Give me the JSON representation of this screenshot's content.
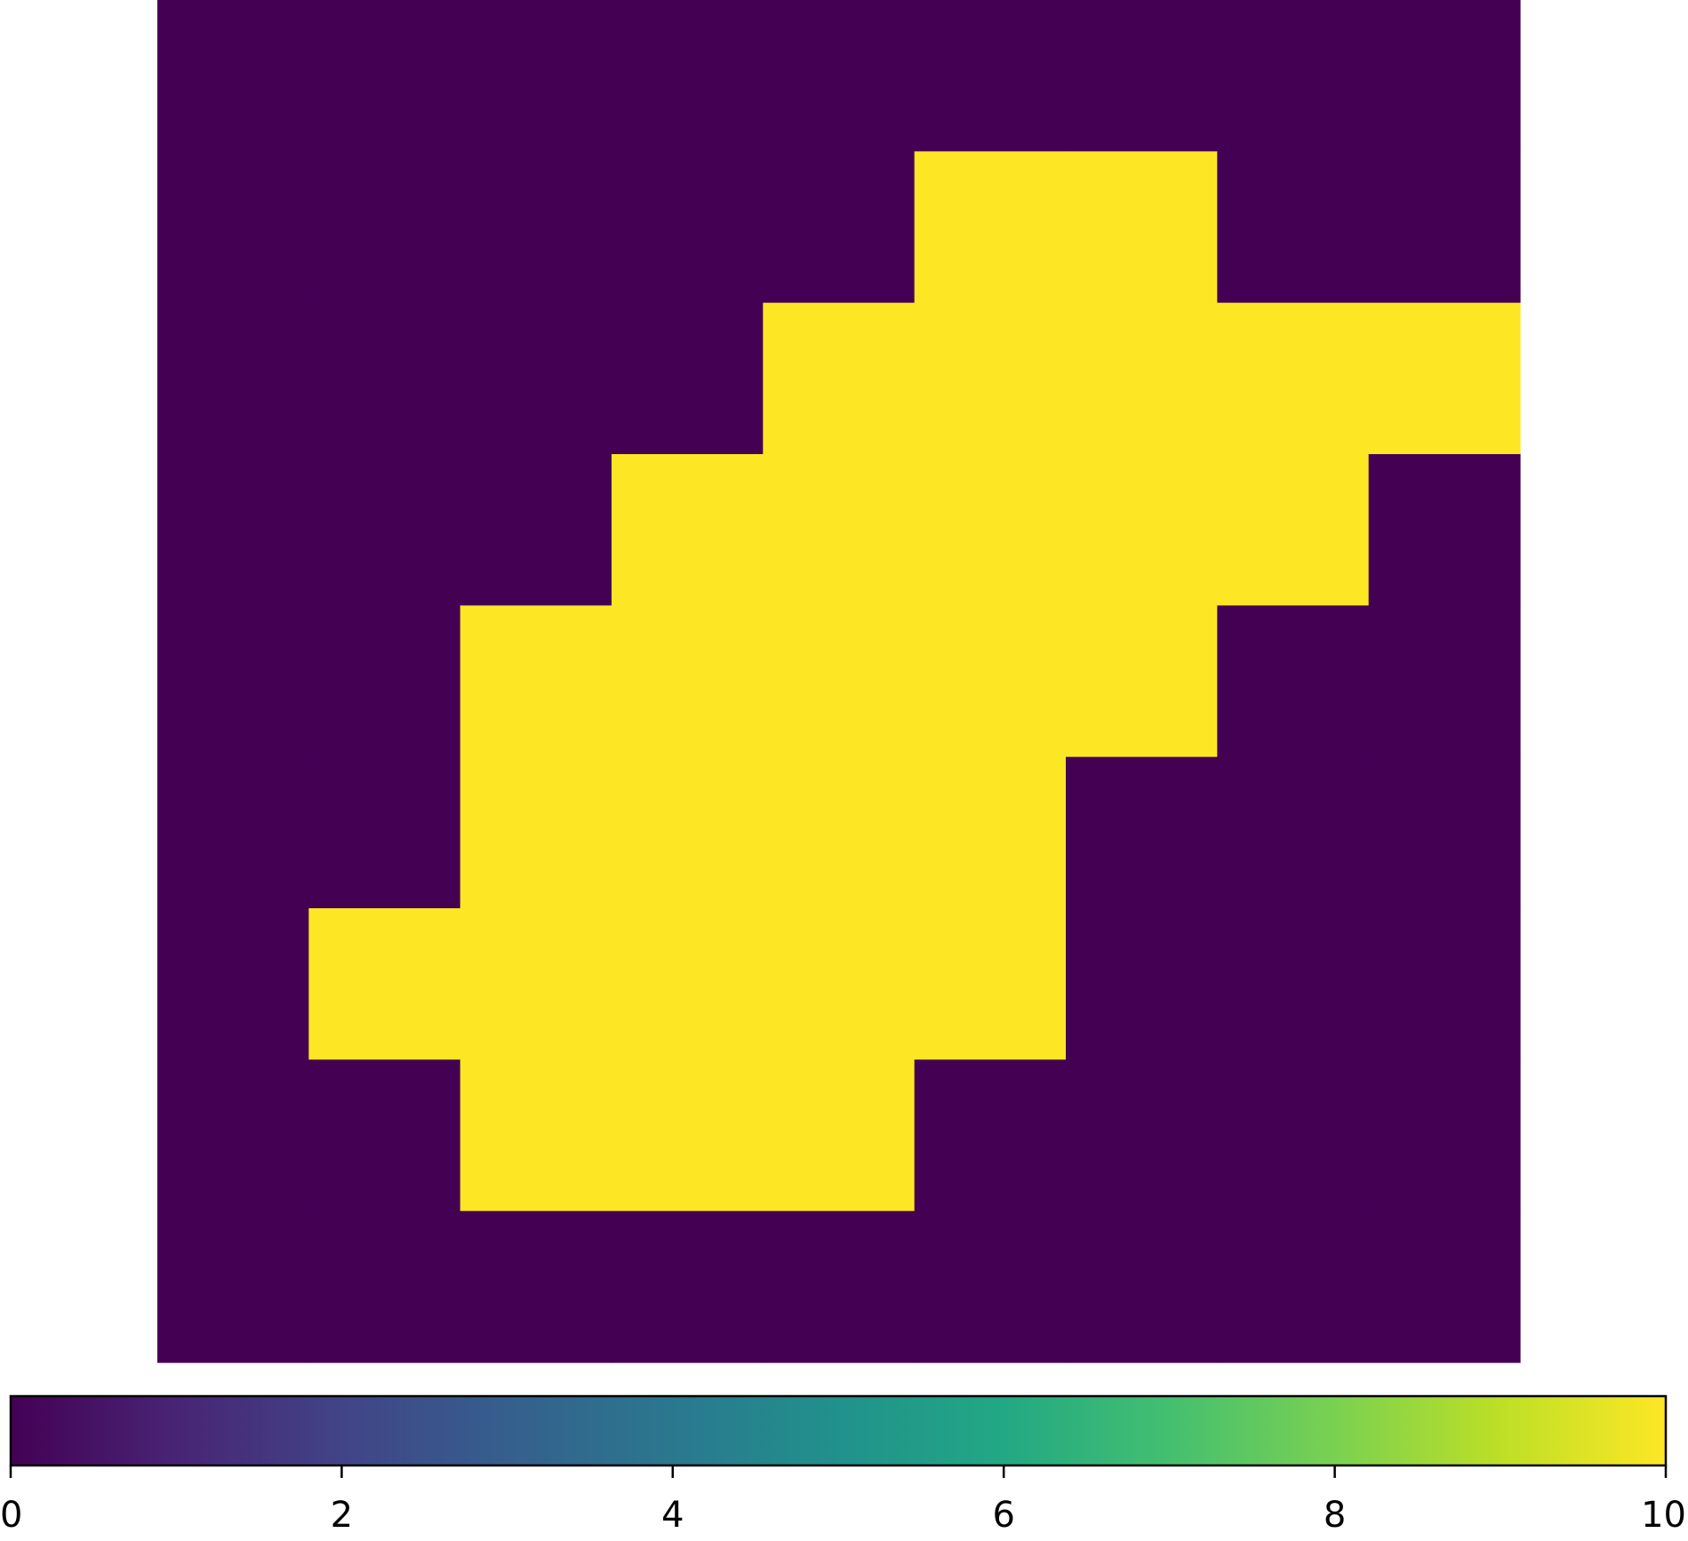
{
  "chart_data": {
    "type": "heatmap",
    "title": "",
    "xlabel": "",
    "ylabel": "",
    "rows": 9,
    "cols": 9,
    "values": [
      [
        0,
        0,
        0,
        0,
        0,
        0,
        0,
        0,
        0
      ],
      [
        0,
        0,
        0,
        0,
        0,
        10,
        10,
        0,
        0
      ],
      [
        0,
        0,
        0,
        0,
        10,
        10,
        10,
        10,
        10
      ],
      [
        0,
        0,
        0,
        10,
        10,
        10,
        10,
        10,
        0
      ],
      [
        0,
        0,
        10,
        10,
        10,
        10,
        10,
        0,
        0
      ],
      [
        0,
        0,
        10,
        10,
        10,
        10,
        0,
        0,
        0
      ],
      [
        0,
        10,
        10,
        10,
        10,
        10,
        0,
        0,
        0
      ],
      [
        0,
        0,
        10,
        10,
        10,
        0,
        0,
        0,
        0
      ],
      [
        0,
        0,
        0,
        0,
        0,
        0,
        0,
        0,
        0
      ]
    ],
    "colormap": "viridis",
    "colorbar": {
      "orientation": "horizontal",
      "placement": "bottom",
      "range": [
        0,
        10
      ],
      "ticks": [
        0,
        2,
        4,
        6,
        8,
        10
      ],
      "tick_labels": [
        "0",
        "2",
        "4",
        "6",
        "8",
        "10"
      ]
    },
    "colors": {
      "low": "#440154",
      "high": "#fde725"
    },
    "grid": false,
    "axes_visible": false
  }
}
